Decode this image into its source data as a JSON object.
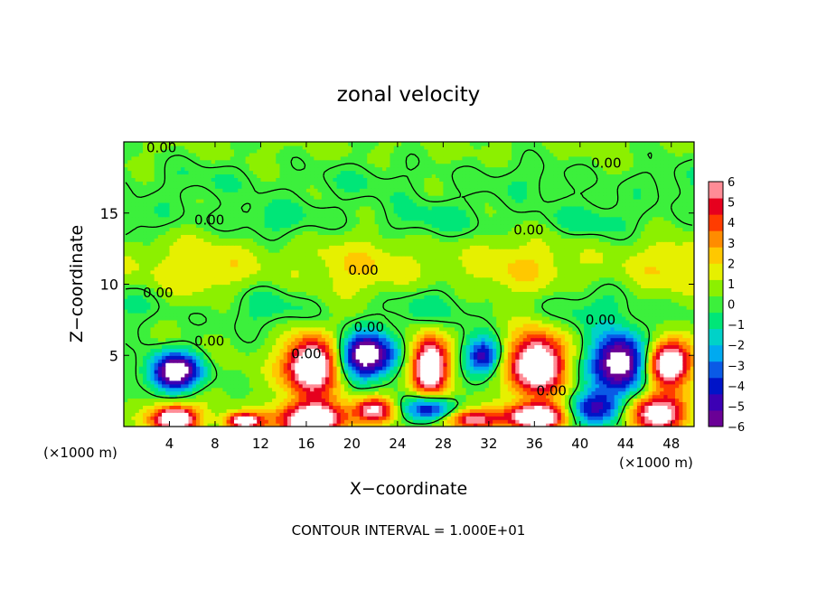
{
  "chart_data": {
    "type": "heatmap",
    "title": "zonal velocity",
    "xlabel": "X−coordinate",
    "ylabel": "Z−coordinate",
    "x_unit": "(×1000 m)",
    "x_unit_right": "(×1000 m)",
    "footer": "CONTOUR INTERVAL = 1.000E+01",
    "xlim": [
      0,
      50
    ],
    "ylim": [
      0,
      20
    ],
    "x_ticks": [
      4,
      8,
      12,
      16,
      20,
      24,
      28,
      32,
      36,
      40,
      44,
      48
    ],
    "y_ticks": [
      5,
      10,
      15
    ],
    "colorbar": {
      "min": -6,
      "max": 6,
      "ticks": [
        6,
        5,
        4,
        3,
        2,
        1,
        0,
        -1,
        -2,
        -3,
        -4,
        -5,
        -6
      ],
      "colors": [
        "#6a0096",
        "#3c00b4",
        "#0014c8",
        "#0a5ae6",
        "#00aaf0",
        "#00d2c8",
        "#00e678",
        "#3cf03c",
        "#8cf000",
        "#e6f000",
        "#ffc800",
        "#ff8c00",
        "#ff3c00",
        "#e6001e",
        "#ff8c96"
      ]
    },
    "contour_labels": [
      {
        "text": "0.00",
        "x": 3.3,
        "z": 19.6
      },
      {
        "text": "0.00",
        "x": 42.3,
        "z": 18.5
      },
      {
        "text": "0.00",
        "x": 7.5,
        "z": 14.5
      },
      {
        "text": "0.00",
        "x": 35.5,
        "z": 13.8
      },
      {
        "text": "0.00",
        "x": 21.0,
        "z": 11.0
      },
      {
        "text": "0.00",
        "x": 3.0,
        "z": 9.4
      },
      {
        "text": "0.00",
        "x": 21.5,
        "z": 7.0
      },
      {
        "text": "0.00",
        "x": 41.8,
        "z": 7.5
      },
      {
        "text": "0.00",
        "x": 7.5,
        "z": 6.0
      },
      {
        "text": "0.00",
        "x": 16.0,
        "z": 5.1
      },
      {
        "text": "0.00",
        "x": 37.5,
        "z": 2.5
      }
    ],
    "features": [
      {
        "type": "low",
        "x": 4.5,
        "z": 3.9,
        "rx": 2.2,
        "rz": 1.3,
        "v": -6
      },
      {
        "type": "high",
        "x": 16.5,
        "z": 4.3,
        "rx": 2.4,
        "rz": 2.0,
        "v": 6
      },
      {
        "type": "low",
        "x": 21.3,
        "z": 5.0,
        "rx": 2.5,
        "rz": 1.5,
        "v": -6
      },
      {
        "type": "high",
        "x": 26.8,
        "z": 4.3,
        "rx": 1.6,
        "rz": 2.0,
        "v": 6
      },
      {
        "type": "low",
        "x": 31.5,
        "z": 5.0,
        "rx": 1.6,
        "rz": 1.2,
        "v": -4
      },
      {
        "type": "high",
        "x": 36.2,
        "z": 4.4,
        "rx": 2.4,
        "rz": 2.2,
        "v": 6
      },
      {
        "type": "low",
        "x": 43.5,
        "z": 4.5,
        "rx": 2.5,
        "rz": 2.0,
        "v": -6
      },
      {
        "type": "high",
        "x": 47.7,
        "z": 4.5,
        "rx": 2.0,
        "rz": 1.5,
        "v": 6
      },
      {
        "type": "high",
        "x": 4.5,
        "z": 0.6,
        "rx": 2.0,
        "rz": 0.9,
        "v": 6
      },
      {
        "type": "high",
        "x": 10.5,
        "z": 0.4,
        "rx": 1.6,
        "rz": 0.6,
        "v": 5
      },
      {
        "type": "high",
        "x": 16.5,
        "z": 0.5,
        "rx": 3.0,
        "rz": 1.2,
        "v": 6
      },
      {
        "type": "high",
        "x": 22.0,
        "z": 1.2,
        "rx": 1.7,
        "rz": 0.9,
        "v": 4
      },
      {
        "type": "low",
        "x": 26.8,
        "z": 1.3,
        "rx": 2.0,
        "rz": 0.9,
        "v": -4
      },
      {
        "type": "high",
        "x": 30.5,
        "z": 0.5,
        "rx": 2.4,
        "rz": 0.7,
        "v": 4
      },
      {
        "type": "high",
        "x": 36.2,
        "z": 0.7,
        "rx": 2.6,
        "rz": 0.9,
        "v": 6
      },
      {
        "type": "low",
        "x": 41.5,
        "z": 1.3,
        "rx": 2.3,
        "rz": 1.2,
        "v": -4
      },
      {
        "type": "high",
        "x": 46.8,
        "z": 1.0,
        "rx": 2.6,
        "rz": 1.4,
        "v": 5
      },
      {
        "type": "band",
        "zc": 11.0,
        "w": 2.5,
        "v": 1.4
      },
      {
        "type": "band",
        "zc": 8.5,
        "w": 1.8,
        "v": -1.3
      },
      {
        "type": "band",
        "zc": 14.5,
        "w": 1.5,
        "v": -1.2
      },
      {
        "type": "band",
        "zc": 17.3,
        "w": 1.5,
        "v": -0.8
      }
    ]
  }
}
